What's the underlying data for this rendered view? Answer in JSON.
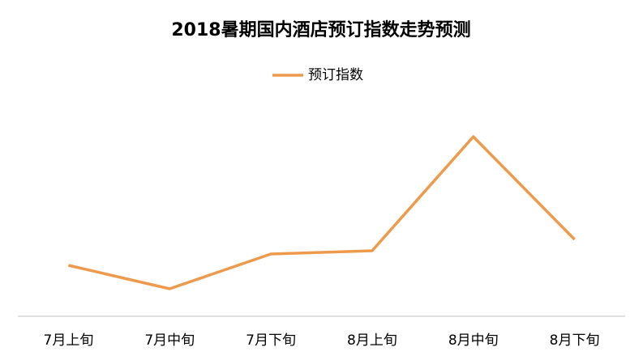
{
  "chart_data": {
    "type": "line",
    "title": "2018暑期国内酒店预订指数走势预测",
    "categories": [
      "7月上旬",
      "7月中旬",
      "7月下旬",
      "8月上旬",
      "8月中旬",
      "8月下旬"
    ],
    "series": [
      {
        "name": "预订指数",
        "color": "#ed9a4c",
        "values": [
          63,
          34,
          77,
          81,
          222,
          95
        ]
      }
    ],
    "ylim": [
      0,
      250
    ],
    "legend": "top"
  }
}
